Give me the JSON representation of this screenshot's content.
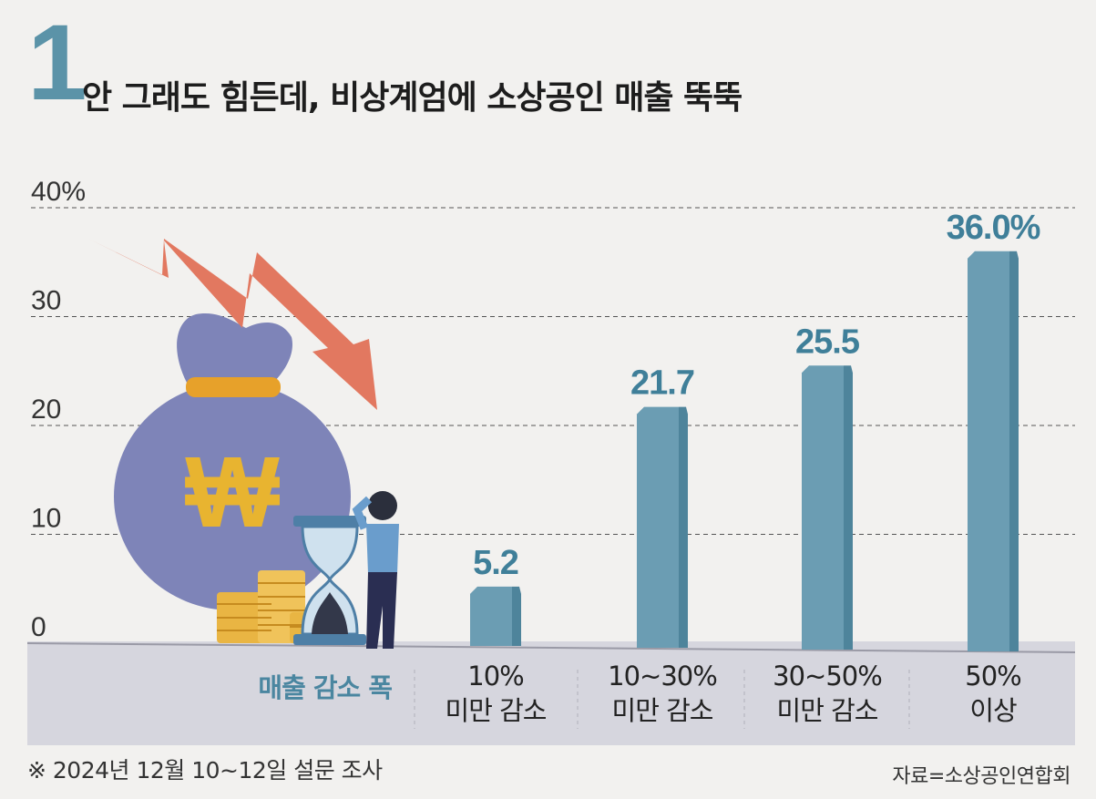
{
  "title": {
    "number": "1",
    "text": "안 그래도 힘든데, 비상계엄에 소상공인 매출 뚝뚝"
  },
  "footnote": "※ 2024년 12월 10~12일 설문 조사",
  "source": "자료=소상공인연합회",
  "colors": {
    "bar": "#6b9db3",
    "bar_side": "#4e849b",
    "value_label": "#3f7f99",
    "axis_label": "#4a86a0",
    "grid": "#555555",
    "floor": "#d6d6de"
  },
  "icons": [
    "money-bag-icon",
    "won-sign-icon",
    "down-arrow-icon",
    "hourglass-icon",
    "coin-stack-icon",
    "stressed-person-icon"
  ],
  "chart_data": {
    "type": "bar",
    "xlabel": "매출 감소 폭",
    "categories": [
      [
        "10%",
        "미만 감소"
      ],
      [
        "10~30%",
        "미만 감소"
      ],
      [
        "30~50%",
        "미만 감소"
      ],
      [
        "50%",
        "이상"
      ]
    ],
    "values": [
      5.2,
      21.7,
      25.5,
      36.0
    ],
    "value_labels": [
      "5.2",
      "21.7",
      "25.5",
      "36.0%"
    ],
    "ylim": [
      0,
      40
    ],
    "yticks": [
      0,
      10,
      20,
      30,
      40
    ],
    "ytick_labels": [
      "0",
      "10",
      "20",
      "30",
      "40%"
    ],
    "grid": true
  }
}
